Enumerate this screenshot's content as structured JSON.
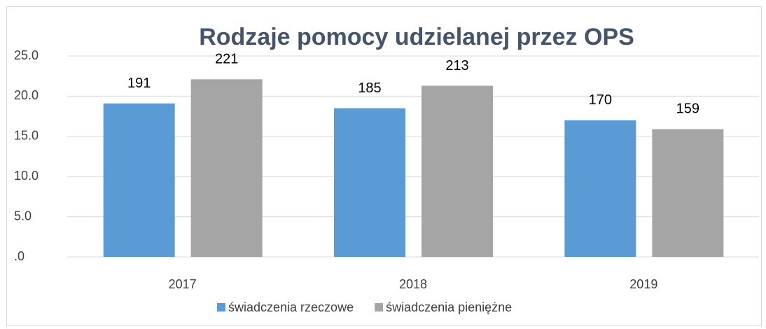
{
  "chart_data": {
    "type": "bar",
    "title": "Rodzaje pomocy udzielanej przez OPS",
    "categories": [
      "2017",
      "2018",
      "2019"
    ],
    "series": [
      {
        "name": "świadczenia rzeczowe",
        "color": "#5b9bd5",
        "values": [
          19.1,
          18.5,
          17.0
        ],
        "value_labels": [
          "191",
          "185",
          "170"
        ]
      },
      {
        "name": "świadczenia pieniężne",
        "color": "#a5a5a5",
        "values": [
          22.1,
          21.3,
          15.9
        ],
        "value_labels": [
          "221",
          "213",
          "159"
        ]
      }
    ],
    "ylim": [
      0,
      25
    ],
    "yticks": [
      {
        "value": 0,
        "label": ".0"
      },
      {
        "value": 5,
        "label": "5.0"
      },
      {
        "value": 10,
        "label": "10.0"
      },
      {
        "value": 15,
        "label": "15.0"
      },
      {
        "value": 20,
        "label": "20.0"
      },
      {
        "value": 25,
        "label": "25.0"
      }
    ],
    "grid": true,
    "legend": "bottom"
  }
}
